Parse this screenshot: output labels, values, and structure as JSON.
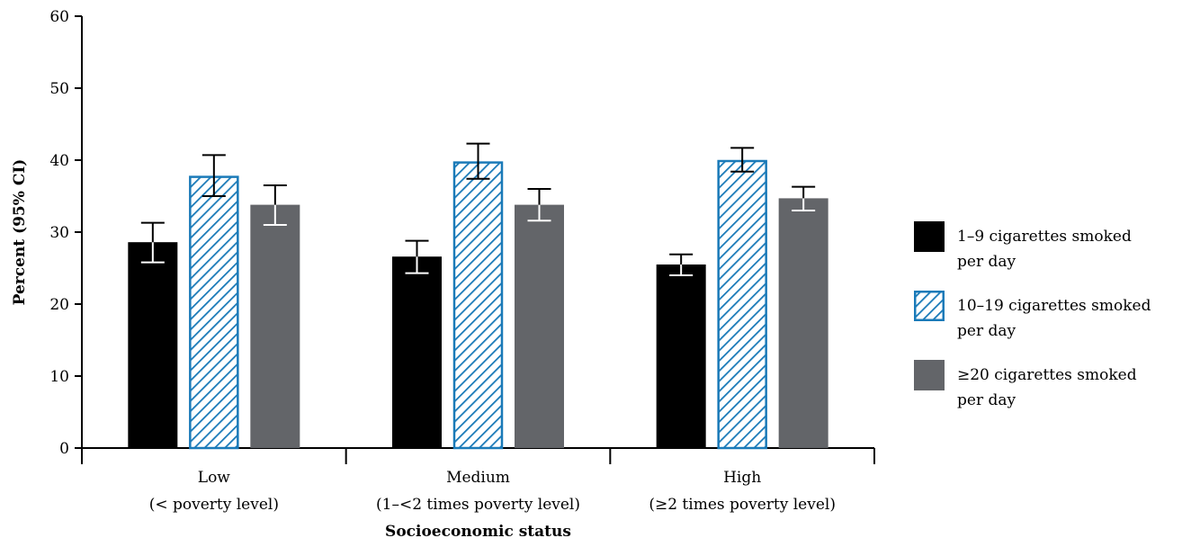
{
  "chart_data": {
    "type": "bar",
    "xlabel": "Socioeconomic status",
    "ylabel": "Percent (95% CI)",
    "ylim": [
      0,
      60
    ],
    "yticks": [
      "0",
      "10",
      "20",
      "30",
      "40",
      "50",
      "60"
    ],
    "categories": [
      {
        "line1": "Low",
        "line2": "(< poverty level)"
      },
      {
        "line1": "Medium",
        "line2": "(1–<2 times poverty level)"
      },
      {
        "line1": "High",
        "line2": "(≥2 times poverty level)"
      }
    ],
    "series": [
      {
        "name": "1–9 cigarettes smoked per day",
        "legend_line1": "1–9 cigarettes smoked",
        "legend_line2": "per day",
        "style": "solid",
        "color": "#000000",
        "values": [
          28.6,
          26.6,
          25.5
        ],
        "ci": [
          [
            25.8,
            31.3
          ],
          [
            24.3,
            28.8
          ],
          [
            24.0,
            26.9
          ]
        ]
      },
      {
        "name": "10–19 cigarettes smoked per day",
        "legend_line1": "10–19 cigarettes smoked",
        "legend_line2": "per day",
        "style": "hatched",
        "color": "#1a7ab8",
        "values": [
          37.8,
          39.8,
          40.0
        ],
        "ci": [
          [
            35.0,
            40.7
          ],
          [
            37.4,
            42.3
          ],
          [
            38.4,
            41.7
          ]
        ]
      },
      {
        "name": "≥20 cigarettes smoked per day",
        "legend_line1": "≥20 cigarettes smoked",
        "legend_line2": "per day",
        "style": "solid",
        "color": "#636569",
        "values": [
          33.8,
          33.8,
          34.7
        ],
        "ci": [
          [
            31.0,
            36.5
          ],
          [
            31.6,
            36.0
          ],
          [
            33.0,
            36.3
          ]
        ]
      }
    ],
    "grid": false,
    "legend": "right"
  }
}
